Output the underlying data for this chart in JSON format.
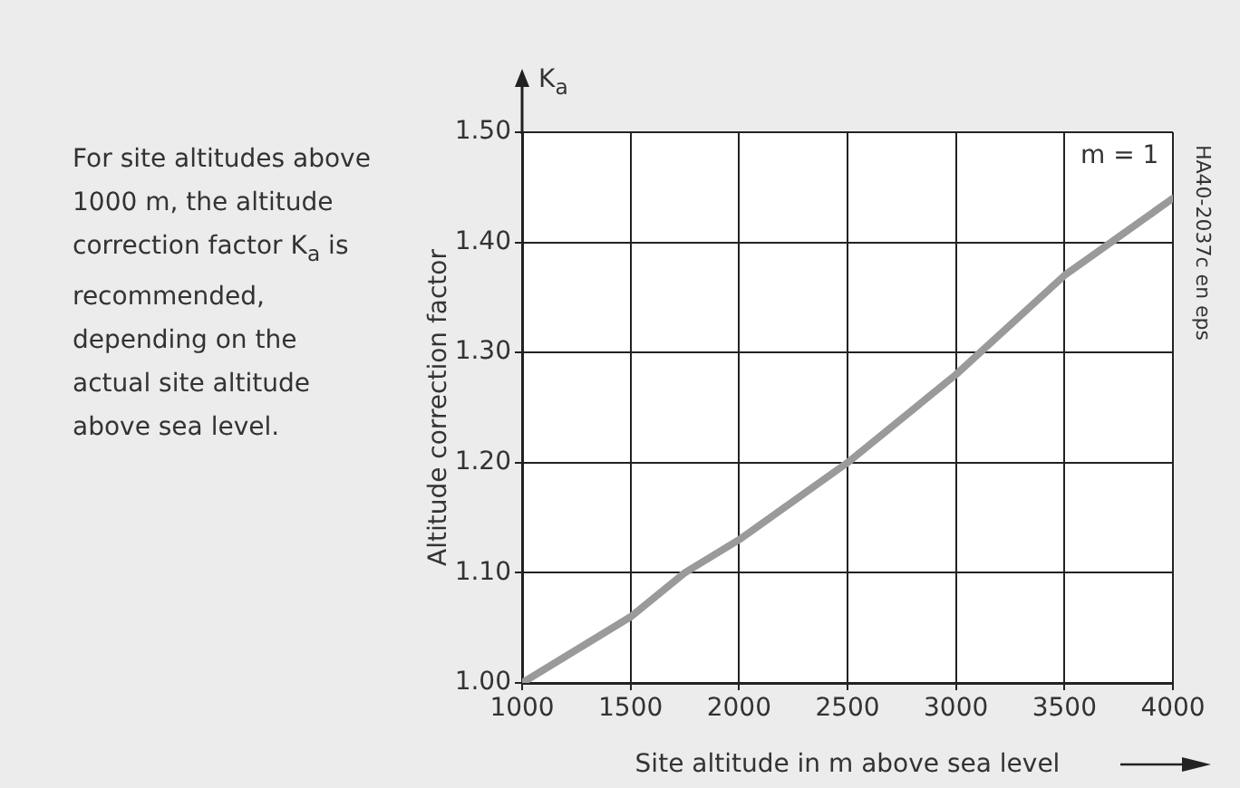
{
  "chart_data": {
    "type": "line",
    "x": [
      1000,
      1500,
      1750,
      2000,
      2500,
      3000,
      3500,
      4000
    ],
    "series": [
      {
        "color": "#9a9a9a",
        "values": [
          1.0,
          1.06,
          1.1,
          1.13,
          1.2,
          1.28,
          1.37,
          1.44
        ]
      }
    ],
    "xlabel": "Site altitude in m above sea level",
    "ylabel": "Altitude correction factor",
    "xlim": [
      1000,
      4000
    ],
    "xticks": [
      1000,
      1500,
      2000,
      2500,
      3000,
      3500,
      4000
    ],
    "ylim": [
      1.0,
      1.5
    ],
    "yticks": [
      {
        "value": 1.0,
        "label": "1.00"
      },
      {
        "value": 1.1,
        "label": "1.10"
      },
      {
        "value": 1.2,
        "label": "1.20"
      },
      {
        "value": 1.3,
        "label": "1.30"
      },
      {
        "value": 1.4,
        "label": "1.40"
      },
      {
        "value": 1.5,
        "label": "1.50"
      }
    ],
    "grid": true,
    "legend": false,
    "marker": "none",
    "line_style": "solid",
    "annotations": [
      "For site altitudes above 1000 m, the altitude correction factor K$_{a}$ is recommended, depending on the actual site altitude above sea level.",
      "K$_{a}$",
      "m = 1",
      "HA40-2037c en eps"
    ]
  }
}
